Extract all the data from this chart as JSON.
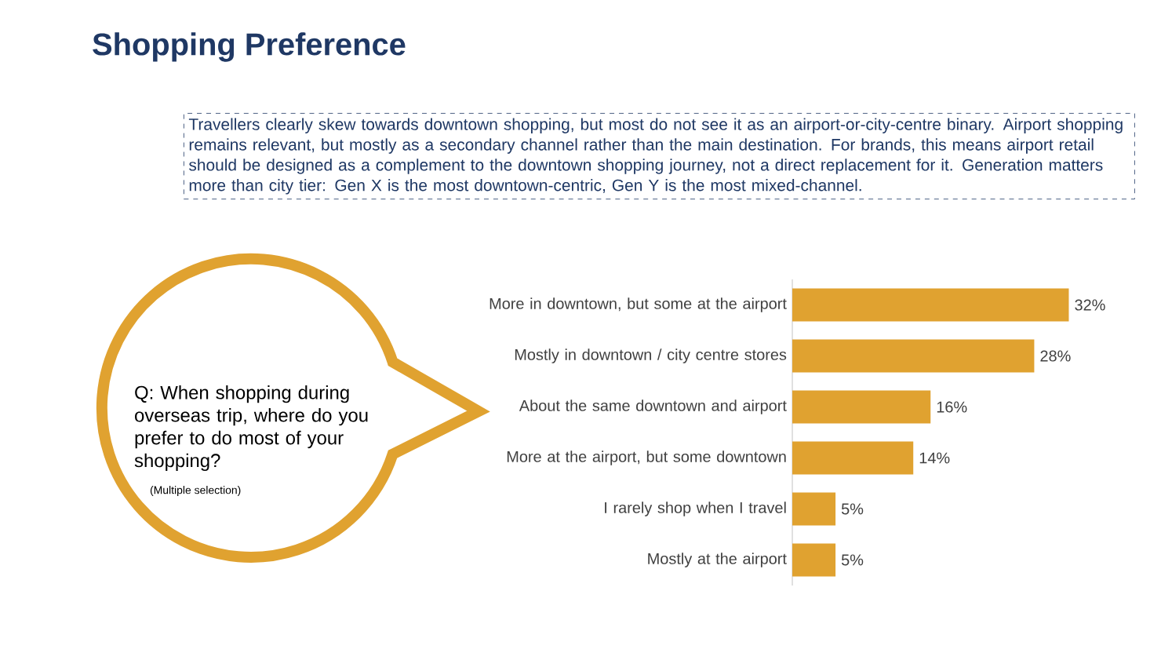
{
  "chart_data": {
    "type": "bar",
    "orientation": "horizontal",
    "title": "Shopping Preference",
    "categories": [
      "More in downtown, but some at the airport",
      "Mostly in downtown / city centre stores",
      "About the same downtown and airport",
      "More at the airport, but some downtown",
      "I rarely shop when I travel",
      "Mostly at the airport"
    ],
    "values": [
      32,
      28,
      16,
      14,
      5,
      5
    ],
    "value_labels": [
      "32%",
      "28%",
      "16%",
      "14%",
      "5%",
      "5%"
    ],
    "color": "#e0a230",
    "annotations": [
      "Travellers clearly skew towards downtown shopping, but most do not see it as an airport-or-city-centre binary. Airport shopping remains relevant, but mostly as a secondary channel rather than the main destination. For brands, this means airport retail should be designed as a complement to the downtown shopping journey, not a direct replacement for it. Generation matters more than city tier: Gen X is the most downtown-centric, Gen Y is the most mixed-channel.",
      "Q: When shopping during overseas trip, where do you prefer to do most of your shopping?",
      "(Multiple selection)"
    ]
  }
}
